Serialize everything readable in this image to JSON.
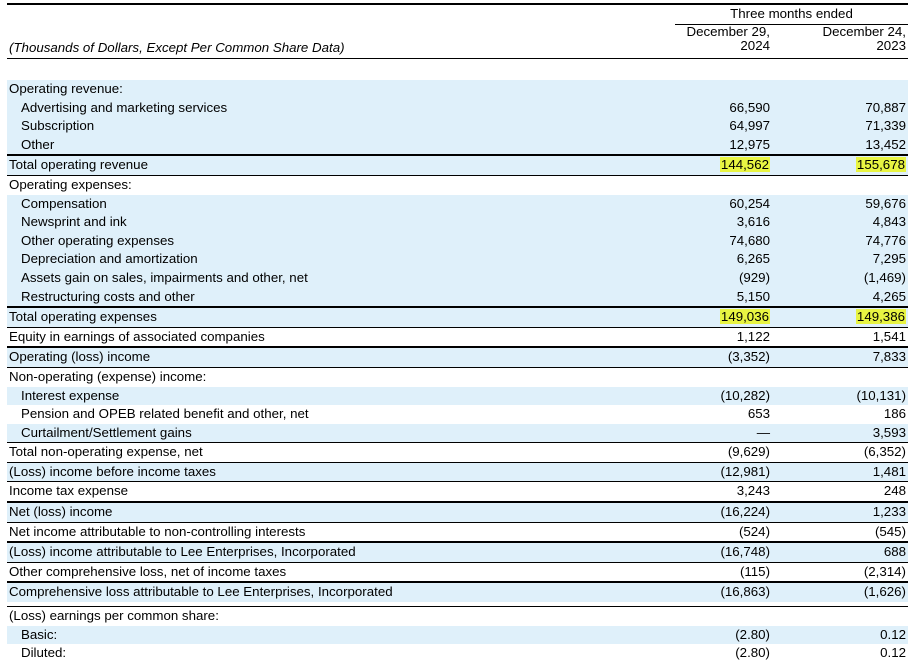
{
  "header": {
    "period": "Three months ended",
    "col1": [
      "December 29,",
      "2024"
    ],
    "col2": [
      "December 24,",
      "2023"
    ],
    "caption": "(Thousands of Dollars, Except Per Common Share Data)"
  },
  "colors": {
    "shade": "#dff0fa",
    "highlight": "#e8f442"
  },
  "rows": [
    {
      "label": "Operating revenue:",
      "v1": "",
      "v2": ""
    },
    {
      "label": "Advertising and marketing services",
      "v1": "66,590",
      "v2": "70,887"
    },
    {
      "label": "Subscription",
      "v1": "64,997",
      "v2": "71,339"
    },
    {
      "label": "Other",
      "v1": "12,975",
      "v2": "13,452"
    },
    {
      "label": "Total operating revenue",
      "v1": "144,562",
      "v2": "155,678"
    },
    {
      "label": "Operating expenses:",
      "v1": "",
      "v2": ""
    },
    {
      "label": "Compensation",
      "v1": "60,254",
      "v2": "59,676"
    },
    {
      "label": "Newsprint and ink",
      "v1": "3,616",
      "v2": "4,843"
    },
    {
      "label": "Other operating expenses",
      "v1": "74,680",
      "v2": "74,776"
    },
    {
      "label": "Depreciation and amortization",
      "v1": "6,265",
      "v2": "7,295"
    },
    {
      "label": "Assets gain on sales, impairments and other, net",
      "v1": "(929)",
      "v2": "(1,469)"
    },
    {
      "label": "Restructuring costs and other",
      "v1": "5,150",
      "v2": "4,265"
    },
    {
      "label": "Total operating expenses",
      "v1": "149,036",
      "v2": "149,386"
    },
    {
      "label": "Equity in earnings of associated companies",
      "v1": "1,122",
      "v2": "1,541"
    },
    {
      "label": "Operating (loss) income",
      "v1": "(3,352)",
      "v2": "7,833"
    },
    {
      "label": "Non-operating (expense) income:",
      "v1": "",
      "v2": ""
    },
    {
      "label": "Interest expense",
      "v1": "(10,282)",
      "v2": "(10,131)"
    },
    {
      "label": "Pension and OPEB related benefit and other, net",
      "v1": "653",
      "v2": "186"
    },
    {
      "label": "Curtailment/Settlement gains",
      "v1": "—",
      "v2": "3,593"
    },
    {
      "label": "Total non-operating expense, net",
      "v1": "(9,629)",
      "v2": "(6,352)"
    },
    {
      "label": "(Loss) income before income taxes",
      "v1": "(12,981)",
      "v2": "1,481"
    },
    {
      "label": "Income tax expense",
      "v1": "3,243",
      "v2": "248"
    },
    {
      "label": "Net (loss) income",
      "v1": "(16,224)",
      "v2": "1,233"
    },
    {
      "label": "Net income attributable to non-controlling interests",
      "v1": "(524)",
      "v2": "(545)"
    },
    {
      "label": "(Loss) income attributable to Lee Enterprises, Incorporated",
      "v1": "(16,748)",
      "v2": "688"
    },
    {
      "label": "Other comprehensive loss, net of income taxes",
      "v1": "(115)",
      "v2": "(2,314)"
    },
    {
      "label": "Comprehensive loss attributable to Lee Enterprises, Incorporated",
      "v1": "(16,863)",
      "v2": "(1,626)"
    },
    {
      "label": "(Loss) earnings per common share:",
      "v1": "",
      "v2": ""
    },
    {
      "label": "Basic:",
      "v1": "(2.80)",
      "v2": "0.12"
    },
    {
      "label": "Diluted:",
      "v1": "(2.80)",
      "v2": "0.12"
    }
  ]
}
